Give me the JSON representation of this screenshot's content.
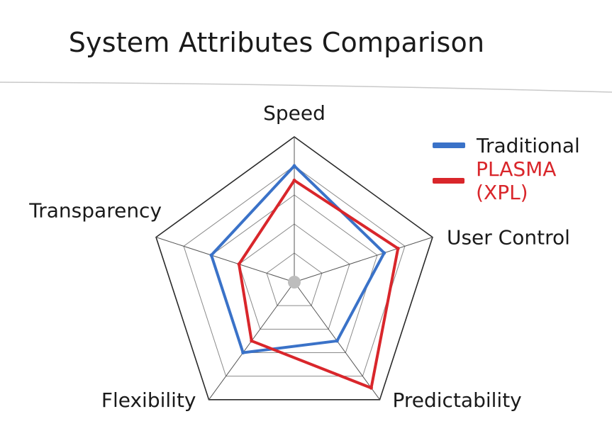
{
  "chart_data": {
    "type": "radar",
    "title": "System Attributes Comparison",
    "axes": [
      "Speed",
      "User Control",
      "Predictability",
      "Flexibility",
      "Transparency"
    ],
    "rmax": 10,
    "rings": [
      2,
      4,
      6,
      8,
      10
    ],
    "legend_position": "top-right",
    "series": [
      {
        "name": "Traditional",
        "color": "#3a72c8",
        "values": [
          8,
          6.5,
          5,
          6,
          6
        ]
      },
      {
        "name": "PLASMA (XPL)",
        "color": "#d9262b",
        "values": [
          7,
          7.5,
          9,
          5,
          4
        ]
      }
    ]
  }
}
